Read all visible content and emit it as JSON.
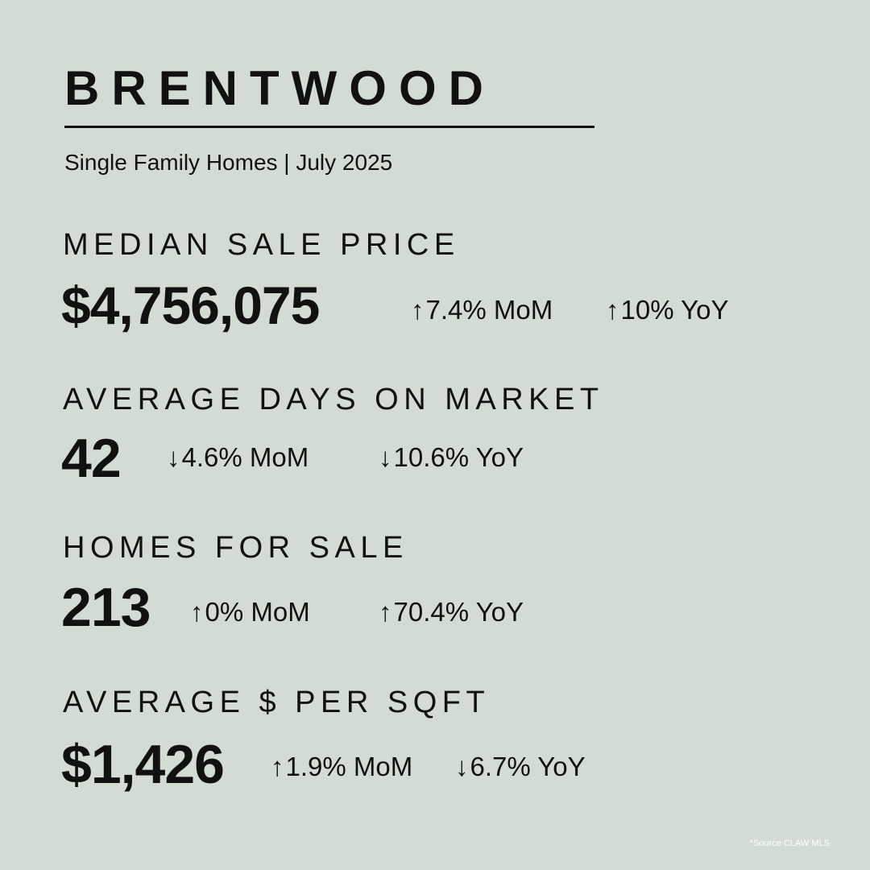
{
  "header": {
    "title": "BRENTWOOD",
    "subtitle": "Single Family Homes | July 2025"
  },
  "metrics": [
    {
      "label": "MEDIAN SALE PRICE",
      "value": "$4,756,075",
      "mom": {
        "arrow": "↑",
        "text": "7.4% MoM"
      },
      "yoy": {
        "arrow": "↑",
        "text": "10% YoY"
      }
    },
    {
      "label": "AVERAGE DAYS ON MARKET",
      "value": "42",
      "mom": {
        "arrow": "↓",
        "text": "4.6% MoM"
      },
      "yoy": {
        "arrow": "↓",
        "text": "10.6% YoY"
      }
    },
    {
      "label": "HOMES FOR SALE",
      "value": "213",
      "mom": {
        "arrow": "↑",
        "text": "0% MoM"
      },
      "yoy": {
        "arrow": "↑",
        "text": "70.4% YoY"
      }
    },
    {
      "label": "AVERAGE $ PER SQFT",
      "value": "$1,426",
      "mom": {
        "arrow": "↑",
        "text": "1.9% MoM"
      },
      "yoy": {
        "arrow": "↓",
        "text": "6.7% YoY"
      }
    }
  ],
  "footer": {
    "source": "*Source CLAW MLS"
  },
  "colors": {
    "background": "#d3dcd3",
    "text": "#111111",
    "source_text": "#ffffff"
  }
}
